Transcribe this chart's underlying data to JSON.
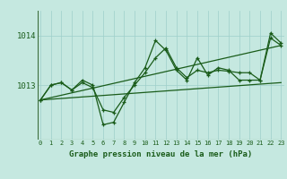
{
  "xlabel": "Graphe pression niveau de la mer (hPa)",
  "background_color": "#c5e8e0",
  "grid_color": "#9ecfca",
  "line_color": "#1a5c1a",
  "axis_color": "#3a6b3a",
  "hours": [
    0,
    1,
    2,
    3,
    4,
    5,
    6,
    7,
    8,
    9,
    10,
    11,
    12,
    13,
    14,
    15,
    16,
    17,
    18,
    19,
    20,
    21,
    22,
    23
  ],
  "series1": [
    1012.7,
    1013.0,
    1013.05,
    1012.9,
    1013.05,
    1012.95,
    1012.5,
    1012.45,
    1012.75,
    1013.0,
    1013.25,
    1013.55,
    1013.75,
    1013.35,
    1013.15,
    1013.3,
    1013.25,
    1013.3,
    1013.28,
    1013.25,
    1013.25,
    1013.1,
    1013.95,
    1013.8
  ],
  "series2": [
    1012.7,
    1013.0,
    1013.05,
    1012.9,
    1013.1,
    1013.0,
    1012.2,
    1012.25,
    1012.65,
    1013.05,
    1013.35,
    1013.9,
    1013.7,
    1013.3,
    1013.1,
    1013.55,
    1013.2,
    1013.35,
    1013.3,
    1013.1,
    1013.1,
    1013.1,
    1014.05,
    1013.85
  ],
  "trend1_x": [
    0,
    23
  ],
  "trend1_y": [
    1012.7,
    1013.8
  ],
  "trend2_x": [
    0,
    23
  ],
  "trend2_y": [
    1012.7,
    1013.05
  ],
  "ylim_min": 1011.9,
  "ylim_max": 1014.5,
  "yticks": [
    1013,
    1014
  ],
  "xlim_min": -0.3,
  "xlim_max": 23.3
}
